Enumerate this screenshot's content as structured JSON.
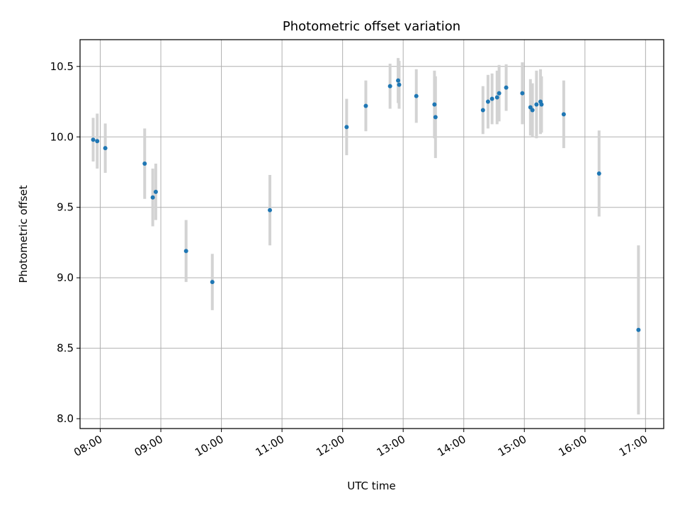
{
  "chart_data": {
    "type": "scatter",
    "title": "Photometric offset variation",
    "xlabel": "UTC time",
    "ylabel": "Photometric offset",
    "xlim": [
      "07:40",
      "17:18"
    ],
    "ylim": [
      7.93,
      10.69
    ],
    "grid": true,
    "x_ticks": [
      "08:00",
      "09:00",
      "10:00",
      "11:00",
      "12:00",
      "13:00",
      "14:00",
      "15:00",
      "16:00",
      "17:00"
    ],
    "y_ticks": [
      "8.0",
      "8.5",
      "9.0",
      "9.5",
      "10.0",
      "10.5"
    ],
    "series": [
      {
        "marker_color": "#1f77b4",
        "errorbar_color": "#d3d3d3",
        "points": [
          {
            "x": "07:53",
            "y": 9.98,
            "err": 0.155
          },
          {
            "x": "07:57",
            "y": 9.97,
            "err": 0.195
          },
          {
            "x": "08:05",
            "y": 9.92,
            "err": 0.175
          },
          {
            "x": "08:44",
            "y": 9.81,
            "err": 0.25
          },
          {
            "x": "08:52",
            "y": 9.57,
            "err": 0.205
          },
          {
            "x": "08:55",
            "y": 9.61,
            "err": 0.2
          },
          {
            "x": "09:25",
            "y": 9.19,
            "err": 0.22
          },
          {
            "x": "09:51",
            "y": 8.97,
            "err": 0.2
          },
          {
            "x": "10:48",
            "y": 9.48,
            "err": 0.25
          },
          {
            "x": "12:04",
            "y": 10.07,
            "err": 0.2
          },
          {
            "x": "12:23",
            "y": 10.22,
            "err": 0.18
          },
          {
            "x": "12:47",
            "y": 10.36,
            "err": 0.16
          },
          {
            "x": "12:55",
            "y": 10.4,
            "err": 0.16
          },
          {
            "x": "12:56",
            "y": 10.37,
            "err": 0.17
          },
          {
            "x": "13:13",
            "y": 10.29,
            "err": 0.19
          },
          {
            "x": "13:31",
            "y": 10.23,
            "err": 0.24
          },
          {
            "x": "13:32",
            "y": 10.14,
            "err": 0.29
          },
          {
            "x": "14:19",
            "y": 10.19,
            "err": 0.17
          },
          {
            "x": "14:24",
            "y": 10.25,
            "err": 0.19
          },
          {
            "x": "14:28",
            "y": 10.27,
            "err": 0.18
          },
          {
            "x": "14:33",
            "y": 10.28,
            "err": 0.19
          },
          {
            "x": "14:35",
            "y": 10.31,
            "err": 0.2
          },
          {
            "x": "14:42",
            "y": 10.35,
            "err": 0.165
          },
          {
            "x": "14:58",
            "y": 10.31,
            "err": 0.22
          },
          {
            "x": "15:06",
            "y": 10.21,
            "err": 0.2
          },
          {
            "x": "15:08",
            "y": 10.19,
            "err": 0.19
          },
          {
            "x": "15:12",
            "y": 10.23,
            "err": 0.24
          },
          {
            "x": "15:16",
            "y": 10.25,
            "err": 0.23
          },
          {
            "x": "15:17",
            "y": 10.23,
            "err": 0.2
          },
          {
            "x": "15:39",
            "y": 10.16,
            "err": 0.24
          },
          {
            "x": "16:14",
            "y": 9.74,
            "err": 0.305
          },
          {
            "x": "16:53",
            "y": 8.63,
            "err": 0.6
          }
        ]
      }
    ]
  }
}
